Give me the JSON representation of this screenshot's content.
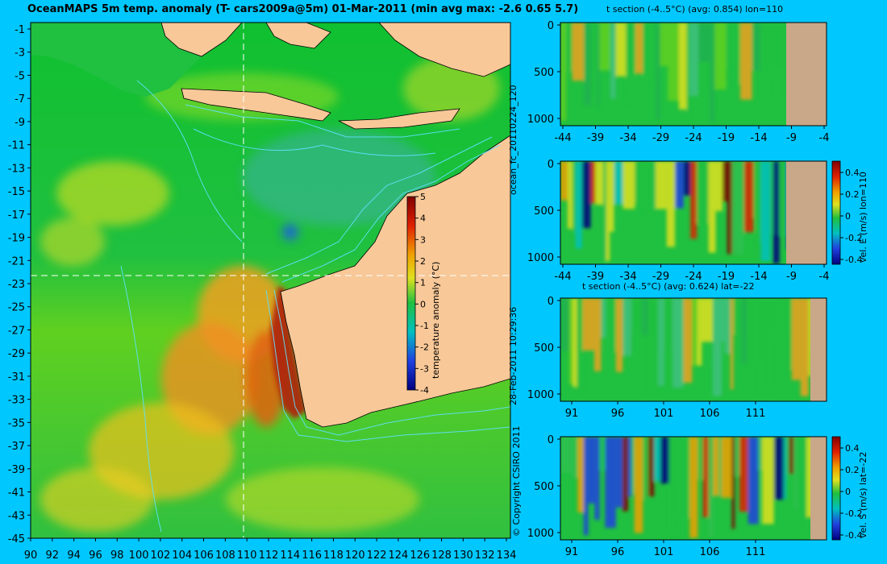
{
  "header": {
    "title": "OceanMAPS 5m temp. anomaly (T- cars2009a@5m) 01-Mar-2011 (min avg max: -2.6 0.65 5.7)"
  },
  "map": {
    "lat_labels": [
      "-1",
      "-3",
      "-5",
      "-7",
      "-9",
      "-11",
      "-13",
      "-15",
      "-17",
      "-19",
      "-21",
      "-23",
      "-25",
      "-27",
      "-29",
      "-31",
      "-33",
      "-35",
      "-37",
      "-39",
      "-41",
      "-43",
      "-45"
    ],
    "lon_labels": [
      "90",
      "92",
      "94",
      "96",
      "98",
      "100",
      "102",
      "104",
      "106",
      "108",
      "110",
      "112",
      "114",
      "116",
      "118",
      "120",
      "122",
      "124",
      "126",
      "128",
      "130",
      "132",
      "134"
    ],
    "section_lon": 110,
    "section_lat": -22,
    "colors": {
      "land": "#f8c898",
      "ocean": "#20c040",
      "contour": "#60e0ff",
      "background": "#00c8ff"
    }
  },
  "map_colorbar": {
    "label": "temperature anomaly (°C)",
    "ticks": [
      "5",
      "4",
      "3",
      "2",
      "1",
      "0",
      "-1",
      "-2",
      "-3",
      "-4"
    ]
  },
  "side_labels": {
    "forecast_id": "ocean_fc_20110224_120",
    "timestamp": "28-Feb-2011 10:29:36",
    "copyright": "© Copyright CSIRO 2011"
  },
  "sections": [
    {
      "title": "t section (-4..5°C) (avg: 0.854) lon=110",
      "x_labels": [
        "-44",
        "-39",
        "-34",
        "-29",
        "-24",
        "-19",
        "-14",
        "-9",
        "-4"
      ],
      "y_labels": [
        "0",
        "500",
        "1000"
      ]
    },
    {
      "title": "",
      "x_labels": [
        "-44",
        "-39",
        "-34",
        "-29",
        "-24",
        "-19",
        "-14",
        "-9",
        "-4"
      ],
      "y_labels": [
        "0",
        "500",
        "1000"
      ],
      "colorbar_label": "vel. E (m/s) lon=110",
      "colorbar_ticks": [
        "0.4",
        "0.2",
        "0",
        "-0.2",
        "-0.4"
      ]
    },
    {
      "title": "t section (-4..5°C) (avg: 0.624) lat=-22",
      "x_labels": [
        "91",
        "96",
        "101",
        "106",
        "111"
      ],
      "y_labels": [
        "0",
        "500",
        "1000"
      ]
    },
    {
      "title": "",
      "x_labels": [
        "91",
        "96",
        "101",
        "106",
        "111"
      ],
      "y_labels": [
        "0",
        "500",
        "1000"
      ],
      "colorbar_label": "vel. S (m/s) lat=-22",
      "colorbar_ticks": [
        "0.4",
        "0.2",
        "0",
        "-0.2",
        "-0.4"
      ]
    }
  ]
}
